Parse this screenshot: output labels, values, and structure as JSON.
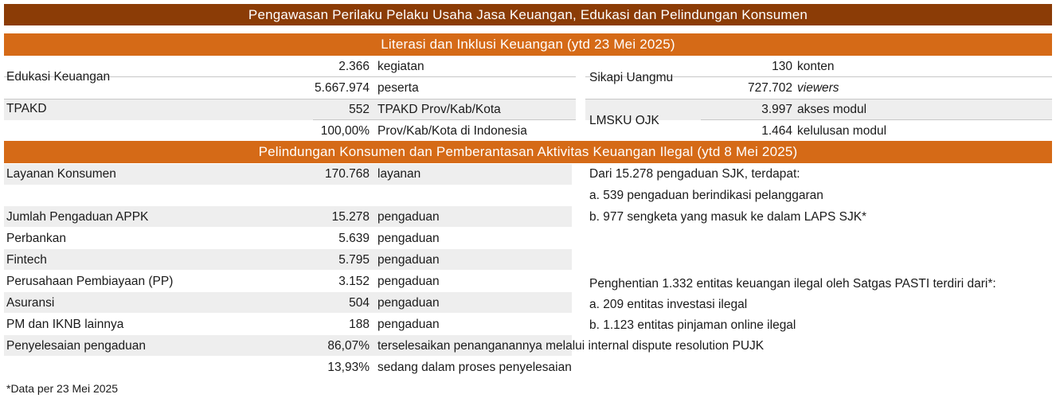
{
  "header": {
    "main_title": "Pengawasan Perilaku Pelaku Usaha Jasa Keuangan, Edukasi dan Pelindungan Konsumen",
    "section1_title": "Literasi dan Inklusi Keuangan (ytd 23 Mei 2025)",
    "section2_title": "Pelindungan Konsumen dan Pemberantasan Aktivitas Keuangan Ilegal (ytd 8 Mei 2025)"
  },
  "literasi": {
    "edukasi": {
      "label": "Edukasi Keuangan",
      "v1": "2.366",
      "u1": "kegiatan",
      "v2": "5.667.974",
      "u2": "peserta"
    },
    "tpakd": {
      "label": "TPAKD",
      "v1": "552",
      "u1": "TPAKD Prov/Kab/Kota",
      "v2": "100,00%",
      "u2": "Prov/Kab/Kota di Indonesia"
    },
    "sikapi": {
      "label": "Sikapi Uangmu",
      "v1": "130",
      "u1": "konten",
      "v2": "727.702",
      "u2": "viewers"
    },
    "lmsku": {
      "label": "LMSKU OJK",
      "v1": "3.997",
      "u1": "akses modul",
      "v2": "1.464",
      "u2": "kelulusan modul"
    }
  },
  "pelindungan": {
    "rows": [
      {
        "label": "Layanan Konsumen",
        "value": "170.768",
        "unit": "layanan"
      },
      {
        "label": "Jumlah Pengaduan APPK",
        "value": "15.278",
        "unit": "pengaduan"
      },
      {
        "label": "Perbankan",
        "value": "5.639",
        "unit": "pengaduan"
      },
      {
        "label": "Fintech",
        "value": "5.795",
        "unit": "pengaduan"
      },
      {
        "label": "Perusahaan Pembiayaan (PP)",
        "value": "3.152",
        "unit": "pengaduan"
      },
      {
        "label": "Asuransi",
        "value": "504",
        "unit": "pengaduan"
      },
      {
        "label": "PM dan IKNB lainnya",
        "value": "188",
        "unit": "pengaduan"
      }
    ],
    "penyelesaian": {
      "label": "Penyelesaian pengaduan",
      "v1": "86,07%",
      "u1": "terselesaikan penanganannya melalui internal dispute resolution PUJK",
      "v2": "13,93%",
      "u2": "sedang dalam proses penyelesaian"
    },
    "right_block1": {
      "intro": "Dari 15.278 pengaduan SJK, terdapat:",
      "a": "a. 539 pengaduan berindikasi pelanggaran",
      "b": "b. 977 sengketa yang masuk ke dalam LAPS SJK*"
    },
    "right_block2": {
      "intro": "Penghentian 1.332 entitas keuangan ilegal oleh Satgas PASTI terdiri dari*:",
      "a": "a. 209 entitas investasi ilegal",
      "b": "b. 1.123 entitas pinjaman online ilegal"
    }
  },
  "footnote": "*Data per 23 Mei 2025"
}
